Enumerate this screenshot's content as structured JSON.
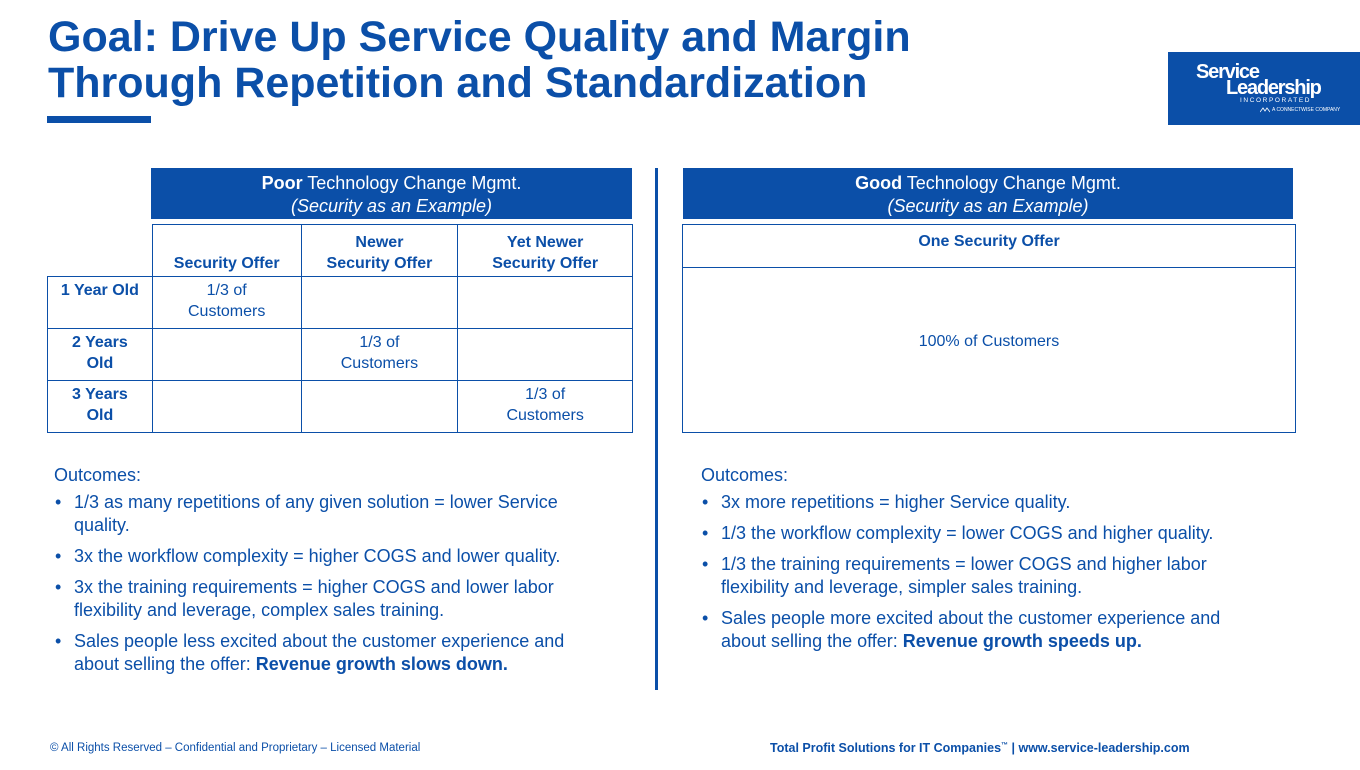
{
  "title": {
    "line1": "Goal: Drive Up Service Quality and Margin",
    "line2": "Through Repetition and Standardization"
  },
  "logo": {
    "line1": "Service",
    "line2": "Leadership",
    "line3": "INCORPORATED",
    "line4": "A CONNECTWISE COMPANY"
  },
  "left": {
    "header_bold": "Poor",
    "header_rest": " Technology Change Mgmt.",
    "header_sub": "(Security as an Example)",
    "columns": [
      "Security Offer",
      "Newer\nSecurity Offer",
      "Yet Newer\nSecurity Offer"
    ],
    "rows": [
      {
        "label": "1 Year Old",
        "cells": [
          "1/3 of\nCustomers",
          "",
          ""
        ]
      },
      {
        "label": "2 Years\nOld",
        "cells": [
          "",
          "1/3 of\nCustomers",
          ""
        ]
      },
      {
        "label": "3 Years\nOld",
        "cells": [
          "",
          "",
          "1/3 of\nCustomers"
        ]
      }
    ],
    "outcomes_title": "Outcomes:",
    "outcomes": [
      {
        "text": "1/3 as many repetitions of any given solution = lower Service quality.",
        "bold": ""
      },
      {
        "text": "3x the workflow complexity = higher COGS and lower quality.",
        "bold": ""
      },
      {
        "text": "3x the training requirements = higher COGS and lower labor flexibility and leverage, complex sales training.",
        "bold": ""
      },
      {
        "text": "Sales people less excited about the customer experience and about selling the offer: ",
        "bold": "Revenue growth slows down."
      }
    ]
  },
  "right": {
    "header_bold": "Good",
    "header_rest": " Technology Change Mgmt.",
    "header_sub": "(Security as an Example)",
    "column": "One Security Offer",
    "cell": "100% of Customers",
    "outcomes_title": "Outcomes:",
    "outcomes": [
      {
        "text": "3x more repetitions = higher Service quality.",
        "bold": ""
      },
      {
        "text": "1/3 the workflow complexity = lower COGS and higher quality.",
        "bold": ""
      },
      {
        "text": "1/3 the training requirements = lower COGS and higher labor flexibility and leverage, simpler sales training.",
        "bold": ""
      },
      {
        "text": "Sales people more excited about the customer experience and about selling the offer: ",
        "bold": "Revenue growth speeds up."
      }
    ]
  },
  "footer": {
    "left": "© All Rights Reserved – Confidential and Proprietary – Licensed Material",
    "right_main": "Total Profit Solutions for IT Companies",
    "right_tm": "™",
    "right_rest": " | www.service-leadership.com"
  }
}
